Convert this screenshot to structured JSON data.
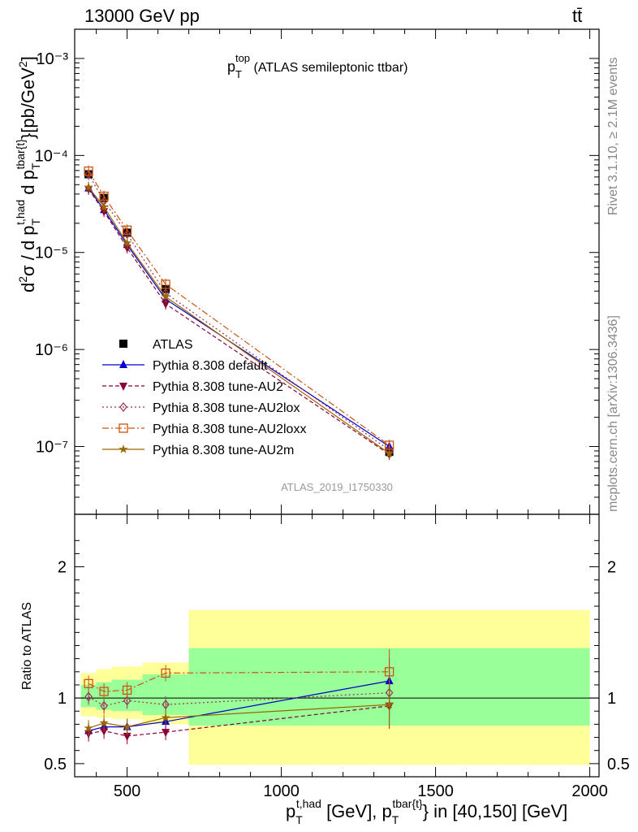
{
  "header": {
    "energy_label": "13000 GeV pp",
    "process_label": "tt̄"
  },
  "side_labels": {
    "rivet": "Rivet 3.1.10, ≥ 2.1M events",
    "mcplots": "mcplots.cern.ch [arXiv:1306.3436]"
  },
  "colors": {
    "atlas": "#000000",
    "default": "#0000cc",
    "au2": "#8b0038",
    "au2lox": "#993355",
    "au2loxx": "#cc5511",
    "au2m": "#996600",
    "band_inner": "#99ff99",
    "band_outer": "#ffff99"
  },
  "chart_data": [
    {
      "type": "line",
      "title": "p_T^top (ATLAS semileptonic ttbar)",
      "title_parts": {
        "main": "p",
        "sub": "T",
        "sup": "top",
        "rest": " (ATLAS semileptonic ttbar)"
      },
      "ylabel": "d²σ / d p_T^t,had d p_T^tbar{t}}[pb/GeV²]",
      "yscale": "log",
      "ylim": [
        2e-08,
        0.002
      ],
      "xlim": [
        330,
        2030
      ],
      "y_tick_labels": [
        "10⁻⁷",
        "10⁻⁶",
        "10⁻⁵",
        "10⁻⁴",
        "10⁻³"
      ],
      "x": [
        375,
        425,
        500,
        625,
        1350
      ],
      "analysis_label": "ATLAS_2019_I1750330",
      "legend_position": "bottom-left",
      "series": [
        {
          "name": "ATLAS",
          "key": "atlas",
          "marker": "square-filled",
          "values": [
            6.4e-05,
            3.65e-05,
            1.6e-05,
            4.2e-06,
            8.8e-08
          ]
        },
        {
          "name": "Pythia 8.308 default",
          "key": "default",
          "marker": "triangle-up",
          "line": "solid",
          "values": [
            4.6e-05,
            2.75e-05,
            1.2e-05,
            3.3e-06,
            1e-07
          ]
        },
        {
          "name": "Pythia 8.308 tune-AU2",
          "key": "au2",
          "marker": "triangle-down",
          "line": "dashed",
          "values": [
            4.5e-05,
            2.65e-05,
            1.12e-05,
            2.95e-06,
            8.3e-08
          ]
        },
        {
          "name": "Pythia 8.308 tune-AU2lox",
          "key": "au2lox",
          "marker": "diamond-open",
          "line": "dotted",
          "values": [
            6.4e-05,
            3.4e-05,
            1.55e-05,
            3.8e-06,
            9.2e-08
          ]
        },
        {
          "name": "Pythia 8.308 tune-AU2loxx",
          "key": "au2loxx",
          "marker": "square-open",
          "line": "dashdot",
          "values": [
            6.9e-05,
            3.8e-05,
            1.7e-05,
            4.7e-06,
            1.03e-07
          ]
        },
        {
          "name": "Pythia 8.308 tune-AU2m",
          "key": "au2m",
          "marker": "star",
          "line": "solid",
          "values": [
            4.7e-05,
            2.95e-05,
            1.25e-05,
            3.5e-06,
            8.5e-08
          ]
        }
      ]
    },
    {
      "type": "line",
      "ylabel": "Ratio to ATLAS",
      "ylim": [
        0.4,
        2.4
      ],
      "xlim": [
        330,
        2030
      ],
      "y_tick_labels": [
        "0.5",
        "1",
        "2"
      ],
      "x_tick_labels": [
        "500",
        "1000",
        "1500",
        "2000"
      ],
      "xlabel": "p_T^t,had [GeV], p_T^tbar{t}} in [40,150] [GeV]",
      "x": [
        375,
        425,
        500,
        625,
        1350
      ],
      "bins": [
        [
          350,
          400
        ],
        [
          400,
          450
        ],
        [
          450,
          550
        ],
        [
          550,
          700
        ],
        [
          700,
          2000
        ]
      ],
      "band_inner": [
        [
          0.93,
          1.1
        ],
        [
          0.91,
          1.12
        ],
        [
          0.9,
          1.14
        ],
        [
          0.87,
          1.18
        ],
        [
          0.79,
          1.38
        ]
      ],
      "band_outer": [
        [
          0.86,
          1.19
        ],
        [
          0.85,
          1.22
        ],
        [
          0.84,
          1.24
        ],
        [
          0.8,
          1.27
        ],
        [
          0.49,
          1.67
        ]
      ],
      "series": [
        {
          "name": "Pythia 8.308 default",
          "key": "default",
          "values": [
            0.75,
            0.78,
            0.78,
            0.82,
            1.13
          ]
        },
        {
          "name": "Pythia 8.308 tune-AU2",
          "key": "au2",
          "values": [
            0.73,
            0.75,
            0.71,
            0.74,
            0.94
          ]
        },
        {
          "name": "Pythia 8.308 tune-AU2lox",
          "key": "au2lox",
          "values": [
            1.01,
            0.94,
            0.98,
            0.95,
            1.04
          ]
        },
        {
          "name": "Pythia 8.308 tune-AU2loxx",
          "key": "au2loxx",
          "values": [
            1.11,
            1.05,
            1.06,
            1.19,
            1.2
          ]
        },
        {
          "name": "Pythia 8.308 tune-AU2m",
          "key": "au2m",
          "values": [
            0.77,
            0.81,
            0.78,
            0.85,
            0.95
          ]
        }
      ]
    }
  ]
}
